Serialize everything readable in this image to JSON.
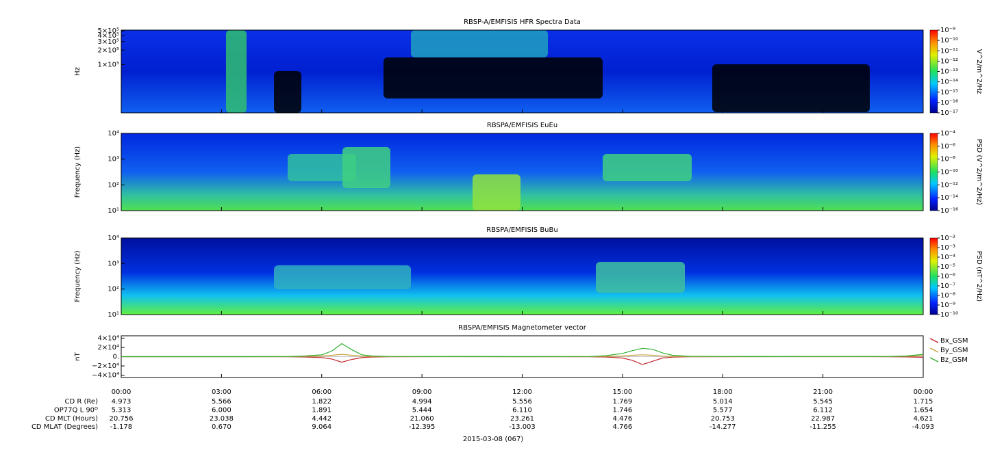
{
  "chart_data": [
    {
      "type": "spectrogram",
      "title": "RBSP-A/EMFISIS  HFR Spectra Data",
      "ylabel": "Hz",
      "ylog": true,
      "ylim": [
        10000,
        520000
      ],
      "yticks": [
        {
          "value": 100000,
          "label": "1×10⁵"
        },
        {
          "value": 200000,
          "label": "2×10⁵"
        },
        {
          "value": 300000,
          "label": "3×10⁵"
        },
        {
          "value": 400000,
          "label": "4×10⁵"
        },
        {
          "value": 500000,
          "label": "5×10⁵"
        }
      ],
      "zlabel": "V^2/m^2/Hz",
      "zlog": true,
      "zlim": [
        1e-17,
        1e-09
      ],
      "zticks": [
        {
          "value": 1e-17,
          "label": "10⁻¹⁷"
        },
        {
          "value": 1e-16,
          "label": "10⁻¹⁶"
        },
        {
          "value": 1e-15,
          "label": "10⁻¹⁵"
        },
        {
          "value": 1e-14,
          "label": "10⁻¹⁴"
        },
        {
          "value": 1e-13,
          "label": "10⁻¹³"
        },
        {
          "value": 1e-12,
          "label": "10⁻¹²"
        },
        {
          "value": 1e-11,
          "label": "10⁻¹¹"
        },
        {
          "value": 1e-10,
          "label": "10⁻¹⁰"
        },
        {
          "value": 1e-09,
          "label": "10⁻⁹"
        }
      ]
    },
    {
      "type": "spectrogram",
      "title": "RBSPA/EMFISIS  EuEu",
      "ylabel": "Frequency (Hz)",
      "ylog": true,
      "ylim": [
        10,
        10000
      ],
      "yticks": [
        {
          "value": 10,
          "label": "10¹"
        },
        {
          "value": 100,
          "label": "10²"
        },
        {
          "value": 1000,
          "label": "10³"
        },
        {
          "value": 10000,
          "label": "10⁴"
        }
      ],
      "zlabel": "PSD (V^2/m^2/Hz)",
      "zlog": true,
      "zlim": [
        1e-16,
        0.0001
      ],
      "zticks": [
        {
          "value": 1e-16,
          "label": "10⁻¹⁶"
        },
        {
          "value": 1e-14,
          "label": "10⁻¹⁴"
        },
        {
          "value": 1e-12,
          "label": "10⁻¹²"
        },
        {
          "value": 1e-10,
          "label": "10⁻¹⁰"
        },
        {
          "value": 1e-08,
          "label": "10⁻⁸"
        },
        {
          "value": 1e-06,
          "label": "10⁻⁶"
        },
        {
          "value": 0.0001,
          "label": "10⁻⁴"
        }
      ]
    },
    {
      "type": "spectrogram",
      "title": "RBSPA/EMFISIS  BuBu",
      "ylabel": "Frequency (Hz)",
      "ylog": true,
      "ylim": [
        10,
        10000
      ],
      "yticks": [
        {
          "value": 10,
          "label": "10¹"
        },
        {
          "value": 100,
          "label": "10²"
        },
        {
          "value": 1000,
          "label": "10³"
        },
        {
          "value": 10000,
          "label": "10⁴"
        }
      ],
      "zlabel": "PSD (nT^2/Hz)",
      "zlog": true,
      "zlim": [
        1e-10,
        0.01
      ],
      "zticks": [
        {
          "value": 1e-10,
          "label": "10⁻¹⁰"
        },
        {
          "value": 1e-09,
          "label": "10⁻⁹"
        },
        {
          "value": 1e-08,
          "label": "10⁻⁸"
        },
        {
          "value": 1e-07,
          "label": "10⁻⁷"
        },
        {
          "value": 1e-06,
          "label": "10⁻⁶"
        },
        {
          "value": 1e-05,
          "label": "10⁻⁵"
        },
        {
          "value": 0.0001,
          "label": "10⁻⁴"
        },
        {
          "value": 0.001,
          "label": "10⁻³"
        },
        {
          "value": 0.01,
          "label": "10⁻²"
        }
      ]
    },
    {
      "type": "line",
      "title": "RBSPA/EMFISIS  Magnetometer vector",
      "ylabel": "nT",
      "ylim": [
        -45000,
        45000
      ],
      "yticks": [
        {
          "value": -40000,
          "label": "−4×10⁴"
        },
        {
          "value": -20000,
          "label": "−2×10⁴"
        },
        {
          "value": 0,
          "label": "0."
        },
        {
          "value": 20000,
          "label": "2×10⁴"
        },
        {
          "value": 40000,
          "label": "4×10⁴"
        }
      ],
      "xlim": [
        0,
        24
      ],
      "xticks": [
        {
          "value": 0,
          "label": "00:00"
        },
        {
          "value": 3,
          "label": "03:00"
        },
        {
          "value": 6,
          "label": "06:00"
        },
        {
          "value": 9,
          "label": "09:00"
        },
        {
          "value": 12,
          "label": "12:00"
        },
        {
          "value": 15,
          "label": "15:00"
        },
        {
          "value": 18,
          "label": "18:00"
        },
        {
          "value": 21,
          "label": "21:00"
        },
        {
          "value": 24,
          "label": "00:00"
        }
      ],
      "x": [
        0,
        2,
        4,
        5,
        5.5,
        6,
        6.3,
        6.6,
        6.9,
        7.2,
        7.5,
        8,
        10,
        12,
        14,
        14.5,
        15,
        15.3,
        15.6,
        15.9,
        16.2,
        16.5,
        17,
        19,
        21,
        23,
        23.5,
        24
      ],
      "series": [
        {
          "name": "Bx_GSM",
          "color": "#c0282d",
          "values": [
            0,
            0,
            0,
            -200,
            -800,
            -2000,
            -5000,
            -12000,
            -6000,
            -2000,
            -800,
            -300,
            0,
            0,
            -200,
            -800,
            -3000,
            -8000,
            -17000,
            -10000,
            -3000,
            -1000,
            -300,
            0,
            0,
            -200,
            -600,
            -1500
          ]
        },
        {
          "name": "By_GSM",
          "color": "#c8a040",
          "values": [
            0,
            0,
            0,
            200,
            600,
            1500,
            3000,
            5000,
            3000,
            1000,
            400,
            200,
            100,
            0,
            100,
            500,
            1500,
            3000,
            4000,
            3000,
            1200,
            500,
            200,
            0,
            100,
            300,
            800,
            2000
          ]
        },
        {
          "name": "Bz_GSM",
          "color": "#30b030",
          "values": [
            0,
            0,
            0,
            300,
            1500,
            4000,
            12000,
            28000,
            15000,
            4000,
            1500,
            500,
            200,
            0,
            300,
            2000,
            7000,
            13000,
            18000,
            16000,
            8000,
            3000,
            800,
            200,
            300,
            500,
            1500,
            5000
          ]
        }
      ]
    }
  ],
  "ephemeris": {
    "labels": [
      "CD R (Re)",
      "OP77Q L 90ᴼ",
      "CD MLT (Hours)",
      "CD MLAT (Degrees)"
    ],
    "rows": [
      [
        "4.973",
        "5.566",
        "1.822",
        "4.994",
        "5.556",
        "1.769",
        "5.014",
        "5.545",
        "1.715"
      ],
      [
        "5.313",
        "6.000",
        "1.891",
        "5.444",
        "6.110",
        "1.746",
        "5.577",
        "6.112",
        "1.654"
      ],
      [
        "20.756",
        "23.038",
        "4.442",
        "21.060",
        "23.261",
        "4.476",
        "20.753",
        "22.987",
        "4.621"
      ],
      [
        "-1.178",
        "0.670",
        "9.064",
        "-12.395",
        "-13.003",
        "4.766",
        "-14.277",
        "-11.255",
        "-4.093"
      ]
    ]
  },
  "date": "2015-03-08 (067)"
}
